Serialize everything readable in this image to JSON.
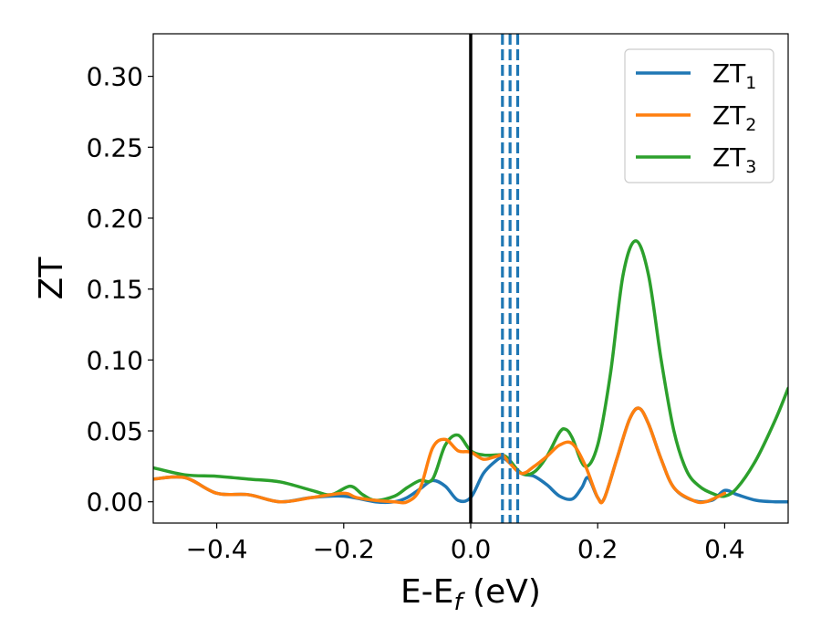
{
  "chart_data": {
    "type": "line",
    "xlabel": "E-E",
    "xlabel_sub": "f",
    "xlabel_unit": " (eV)",
    "ylabel": "ZT",
    "xlim": [
      -0.5,
      0.5
    ],
    "ylim": [
      -0.015,
      0.33
    ],
    "xticks": [
      -0.4,
      -0.2,
      0.0,
      0.2,
      0.4
    ],
    "xtick_labels": [
      "−0.4",
      "−0.2",
      "0.0",
      "0.2",
      "0.4"
    ],
    "yticks": [
      0.0,
      0.05,
      0.1,
      0.15,
      0.2,
      0.25,
      0.3
    ],
    "ytick_labels": [
      "0.00",
      "0.05",
      "0.10",
      "0.15",
      "0.20",
      "0.25",
      "0.30"
    ],
    "grid": false,
    "legend_position": "top-right",
    "vertical_lines": [
      {
        "x": 0.0,
        "color": "#000000",
        "style": "solid"
      },
      {
        "x": 0.05,
        "color": "#1f77b4",
        "style": "dashed"
      },
      {
        "x": 0.062,
        "color": "#1f77b4",
        "style": "dashed"
      },
      {
        "x": 0.074,
        "color": "#1f77b4",
        "style": "dashed"
      }
    ],
    "series": [
      {
        "name": "ZT",
        "sub": "1",
        "color": "#1f77b4",
        "x": [
          -0.5,
          -0.45,
          -0.4,
          -0.35,
          -0.3,
          -0.25,
          -0.2,
          -0.15,
          -0.12,
          -0.1,
          -0.08,
          -0.06,
          -0.04,
          -0.02,
          0.0,
          0.02,
          0.04,
          0.05,
          0.06,
          0.08,
          0.1,
          0.12,
          0.14,
          0.16,
          0.175,
          0.185,
          0.2,
          0.21,
          0.23,
          0.25,
          0.265,
          0.28,
          0.3,
          0.32,
          0.35,
          0.38,
          0.4,
          0.42,
          0.45,
          0.48,
          0.5
        ],
        "y": [
          0.016,
          0.017,
          0.006,
          0.005,
          0.0,
          0.003,
          0.004,
          0.0,
          0.0,
          0.003,
          0.009,
          0.015,
          0.011,
          0.001,
          0.003,
          0.02,
          0.029,
          0.031,
          0.028,
          0.02,
          0.018,
          0.012,
          0.004,
          0.002,
          0.01,
          0.017,
          0.003,
          0.002,
          0.03,
          0.058,
          0.066,
          0.055,
          0.03,
          0.01,
          0.001,
          0.001,
          0.008,
          0.005,
          0.001,
          0.0,
          0.0
        ]
      },
      {
        "name": "ZT",
        "sub": "2",
        "color": "#ff7f0e",
        "x": [
          -0.5,
          -0.45,
          -0.4,
          -0.35,
          -0.3,
          -0.25,
          -0.2,
          -0.18,
          -0.15,
          -0.12,
          -0.1,
          -0.08,
          -0.06,
          -0.04,
          -0.02,
          0.0,
          0.02,
          0.04,
          0.05,
          0.06,
          0.08,
          0.1,
          0.12,
          0.14,
          0.16,
          0.18,
          0.2,
          0.21,
          0.23,
          0.25,
          0.265,
          0.28,
          0.3,
          0.32,
          0.35,
          0.37,
          0.4
        ],
        "y": [
          0.016,
          0.017,
          0.006,
          0.005,
          0.0,
          0.003,
          0.006,
          0.003,
          0.001,
          0.0,
          0.0,
          0.009,
          0.038,
          0.044,
          0.036,
          0.035,
          0.03,
          0.032,
          0.033,
          0.028,
          0.02,
          0.025,
          0.032,
          0.04,
          0.041,
          0.026,
          0.003,
          0.002,
          0.03,
          0.058,
          0.066,
          0.055,
          0.03,
          0.01,
          0.001,
          0.0,
          0.006
        ]
      },
      {
        "name": "ZT",
        "sub": "3",
        "color": "#2ca02c",
        "x": [
          -0.5,
          -0.45,
          -0.4,
          -0.35,
          -0.3,
          -0.25,
          -0.22,
          -0.19,
          -0.17,
          -0.15,
          -0.12,
          -0.1,
          -0.08,
          -0.06,
          -0.04,
          -0.02,
          0.0,
          0.02,
          0.04,
          0.05,
          0.06,
          0.08,
          0.1,
          0.12,
          0.14,
          0.15,
          0.16,
          0.18,
          0.2,
          0.22,
          0.24,
          0.26,
          0.28,
          0.3,
          0.32,
          0.34,
          0.36,
          0.38,
          0.4,
          0.42,
          0.45,
          0.48,
          0.5
        ],
        "y": [
          0.024,
          0.019,
          0.018,
          0.016,
          0.014,
          0.008,
          0.005,
          0.011,
          0.005,
          0.001,
          0.004,
          0.01,
          0.015,
          0.016,
          0.04,
          0.047,
          0.036,
          0.033,
          0.033,
          0.033,
          0.03,
          0.02,
          0.021,
          0.032,
          0.049,
          0.051,
          0.045,
          0.025,
          0.04,
          0.09,
          0.16,
          0.184,
          0.16,
          0.1,
          0.05,
          0.022,
          0.011,
          0.006,
          0.004,
          0.01,
          0.03,
          0.058,
          0.08
        ]
      }
    ]
  }
}
